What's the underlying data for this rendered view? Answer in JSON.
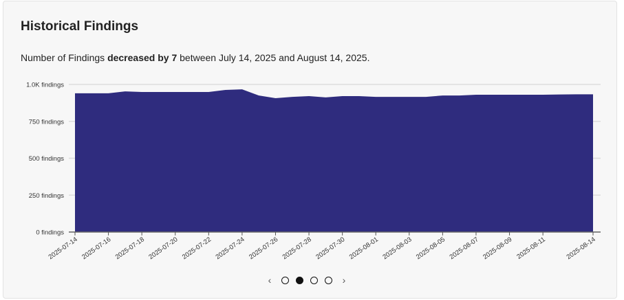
{
  "card": {
    "title": "Historical Findings",
    "summary_prefix": "Number of Findings ",
    "summary_bold": "decreased by 7",
    "summary_suffix": " between July 14, 2025 and August 14, 2025."
  },
  "colors": {
    "area": "#2f2c7e",
    "grid": "#dddddd",
    "background": "#f7f7f7"
  },
  "pager": {
    "prev_icon": "chevron-left-icon",
    "next_icon": "chevron-right-icon",
    "prev": "‹",
    "next": "›",
    "pages": 4,
    "active_page": 2
  },
  "chart_data": {
    "type": "area",
    "x": [
      "2025-07-14",
      "2025-07-15",
      "2025-07-16",
      "2025-07-17",
      "2025-07-18",
      "2025-07-19",
      "2025-07-20",
      "2025-07-21",
      "2025-07-22",
      "2025-07-23",
      "2025-07-24",
      "2025-07-25",
      "2025-07-26",
      "2025-07-27",
      "2025-07-28",
      "2025-07-29",
      "2025-07-30",
      "2025-07-31",
      "2025-08-01",
      "2025-08-02",
      "2025-08-03",
      "2025-08-04",
      "2025-08-05",
      "2025-08-06",
      "2025-08-07",
      "2025-08-08",
      "2025-08-09",
      "2025-08-10",
      "2025-08-11",
      "2025-08-12",
      "2025-08-13",
      "2025-08-14"
    ],
    "series": [
      {
        "values": [
          940,
          940,
          940,
          953,
          949,
          949,
          949,
          949,
          949,
          963,
          967,
          925,
          907,
          916,
          921,
          912,
          921,
          921,
          916,
          916,
          916,
          916,
          925,
          925,
          930,
          930,
          930,
          930,
          930,
          932,
          933,
          933
        ]
      }
    ],
    "ylim": [
      0,
      1000
    ],
    "yticks": [
      0,
      250,
      500,
      750,
      1000
    ],
    "ytick_labels": [
      "0 findings",
      "250 findings",
      "500 findings",
      "750 findings",
      "1.0K findings"
    ],
    "xtick_labels": [
      "2025-07-14",
      "2025-07-16",
      "2025-07-18",
      "2025-07-20",
      "2025-07-22",
      "2025-07-24",
      "2025-07-26",
      "2025-07-28",
      "2025-07-30",
      "2025-08-01",
      "2025-08-03",
      "2025-08-05",
      "2025-08-07",
      "2025-08-09",
      "2025-08-11",
      "2025-08-14"
    ],
    "grid": true,
    "legend": "none"
  }
}
